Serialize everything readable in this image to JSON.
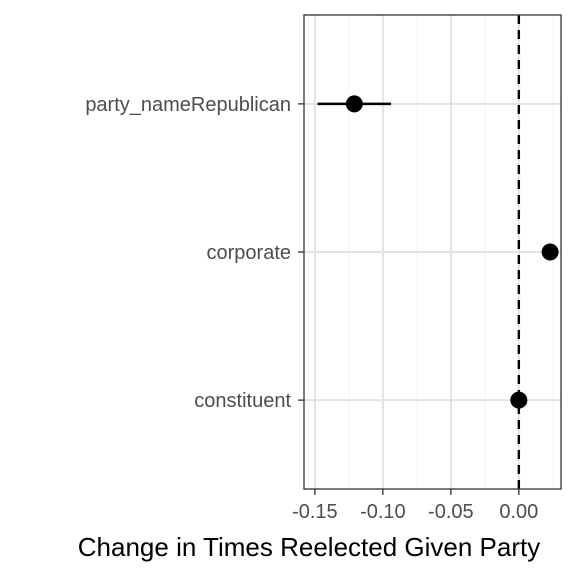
{
  "chart_data": {
    "type": "scatter",
    "subtype": "coefficient-plot",
    "xlabel": "Change in Times Reelected Given Party",
    "ylabel": "",
    "title": "",
    "xlim": [
      -0.158,
      0.031
    ],
    "x_ticks": [
      -0.15,
      -0.1,
      -0.05,
      0.0
    ],
    "x_tick_labels": [
      "-0.15",
      "-0.10",
      "-0.05",
      "0.00"
    ],
    "categories": [
      "party_nameRepublican",
      "corporate",
      "constituent"
    ],
    "points": [
      {
        "term": "party_nameRepublican",
        "estimate": -0.121,
        "ci_low": -0.148,
        "ci_high": -0.094
      },
      {
        "term": "corporate",
        "estimate": 0.023,
        "ci_low": 0.023,
        "ci_high": 0.023
      },
      {
        "term": "constituent",
        "estimate": 0.0,
        "ci_low": 0.0,
        "ci_high": 0.0
      }
    ],
    "reference_line": {
      "x": 0,
      "style": "dashed"
    },
    "grid": true,
    "legend": "none"
  }
}
